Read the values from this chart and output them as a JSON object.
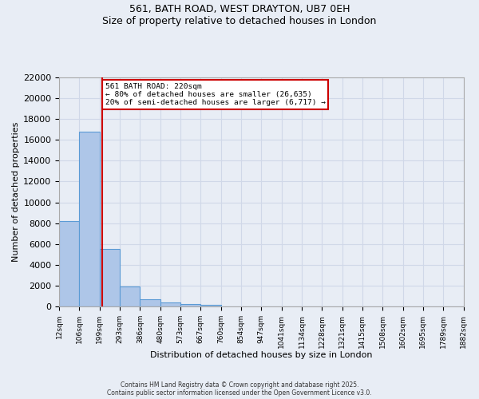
{
  "title_line1": "561, BATH ROAD, WEST DRAYTON, UB7 0EH",
  "title_line2": "Size of property relative to detached houses in London",
  "xlabel": "Distribution of detached houses by size in London",
  "ylabel": "Number of detached properties",
  "bin_edges": [
    "12sqm",
    "106sqm",
    "199sqm",
    "293sqm",
    "386sqm",
    "480sqm",
    "573sqm",
    "667sqm",
    "760sqm",
    "854sqm",
    "947sqm",
    "1041sqm",
    "1134sqm",
    "1228sqm",
    "1321sqm",
    "1415sqm",
    "1508sqm",
    "1602sqm",
    "1695sqm",
    "1789sqm",
    "1882sqm"
  ],
  "bar_heights": [
    8200,
    16800,
    5500,
    1900,
    700,
    350,
    200,
    150,
    0,
    0,
    0,
    0,
    0,
    0,
    0,
    0,
    0,
    0,
    0,
    0
  ],
  "bar_color": "#aec6e8",
  "bar_edge_color": "#5b9bd5",
  "red_line_x": 2.12,
  "annotation_title": "561 BATH ROAD: 220sqm",
  "annotation_line2": "← 80% of detached houses are smaller (26,635)",
  "annotation_line3": "20% of semi-detached houses are larger (6,717) →",
  "annotation_box_color": "#ffffff",
  "annotation_edge_color": "#cc0000",
  "ylim": [
    0,
    22000
  ],
  "yticks": [
    0,
    2000,
    4000,
    6000,
    8000,
    10000,
    12000,
    14000,
    16000,
    18000,
    20000,
    22000
  ],
  "grid_color": "#d0d8e8",
  "background_color": "#e8edf5",
  "footer_line1": "Contains HM Land Registry data © Crown copyright and database right 2025.",
  "footer_line2": "Contains public sector information licensed under the Open Government Licence v3.0."
}
